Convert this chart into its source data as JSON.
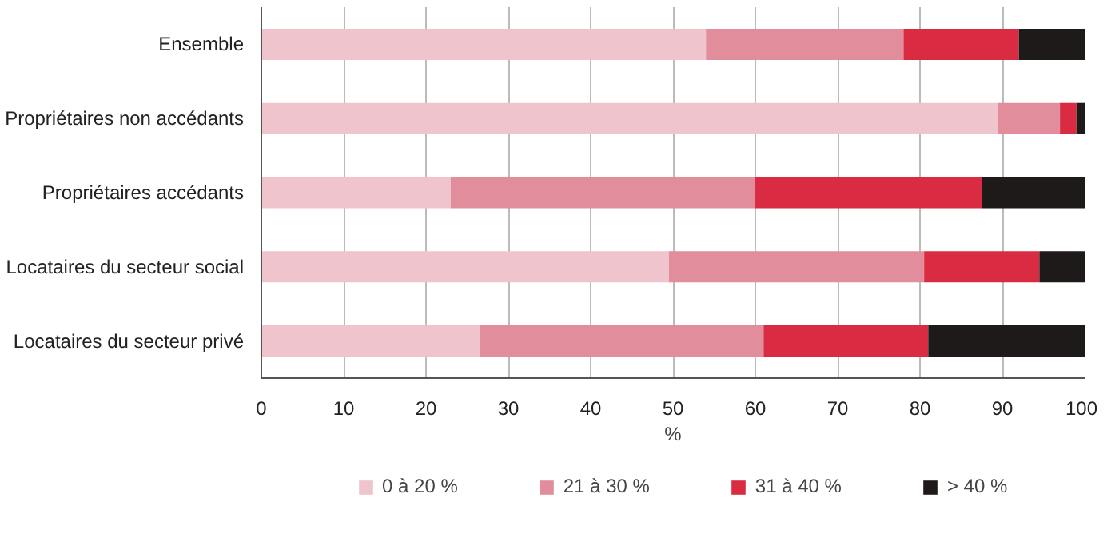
{
  "chart_data": {
    "type": "bar",
    "orientation": "horizontal",
    "stacked": true,
    "categories": [
      "Ensemble",
      "Propriétaires non accédants",
      "Propriétaires accédants",
      "Locataires du secteur social",
      "Locataires du secteur privé"
    ],
    "series": [
      {
        "name": "0 à 20 %",
        "color": "#efc4cc",
        "values": [
          54,
          89.5,
          23,
          49.5,
          26.5
        ]
      },
      {
        "name": "21 à 30 %",
        "color": "#e28d9b",
        "values": [
          24,
          7.5,
          37,
          31,
          34.5
        ]
      },
      {
        "name": "31 à 40 %",
        "color": "#d92b42",
        "values": [
          14,
          2,
          27.5,
          14,
          20
        ]
      },
      {
        "name": "> 40 %",
        "color": "#1e1a19",
        "values": [
          8,
          1,
          12.5,
          5.5,
          19
        ]
      }
    ],
    "xlabel": "%",
    "xlim": [
      0,
      100
    ],
    "xticks": [
      0,
      10,
      20,
      30,
      40,
      50,
      60,
      70,
      80,
      90,
      100
    ],
    "grid": "x",
    "legend": "bottom"
  }
}
